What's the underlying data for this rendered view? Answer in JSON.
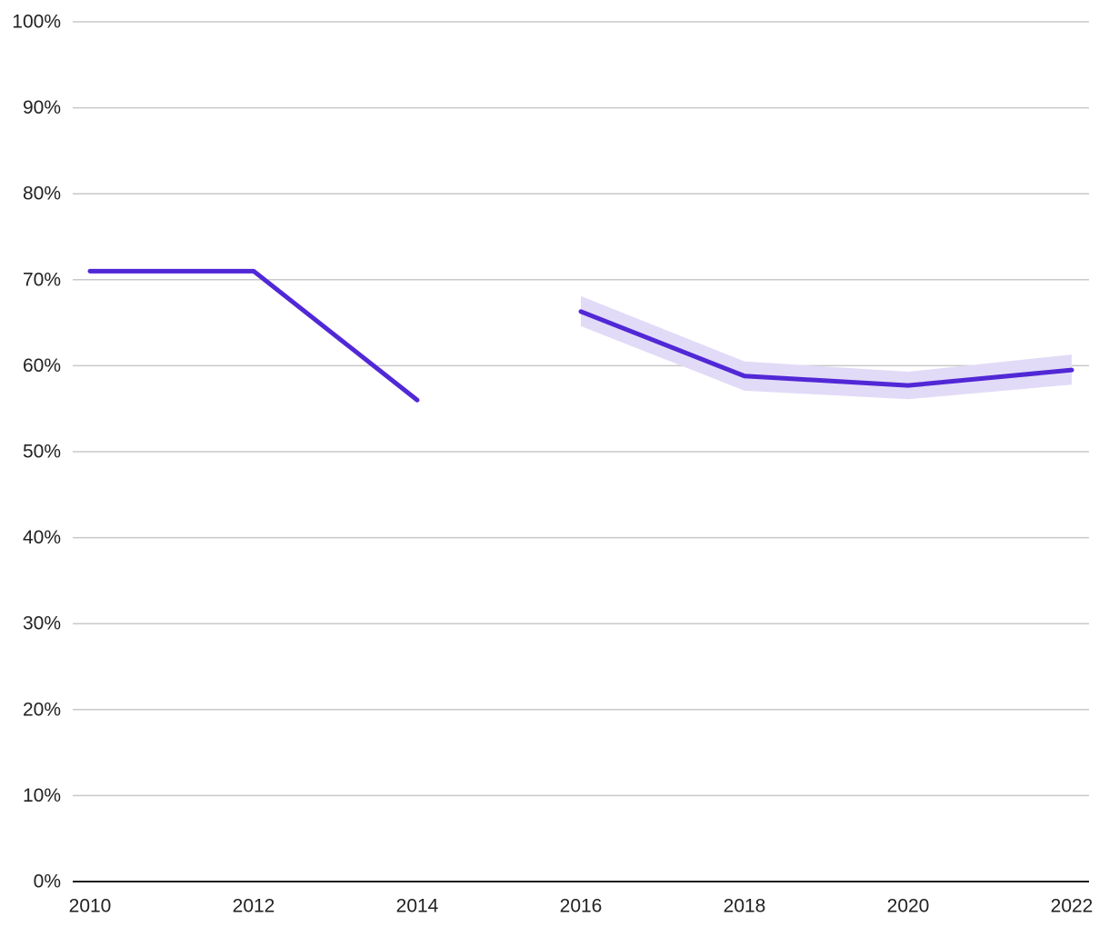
{
  "chart_data": {
    "type": "line",
    "title": "",
    "xlabel": "",
    "ylabel": "",
    "x": [
      2010,
      2012,
      2014,
      2016,
      2018,
      2020,
      2022
    ],
    "xlim": [
      2010,
      2022
    ],
    "ylim": [
      0,
      100
    ],
    "grid": true,
    "legend": "none",
    "y_tick_labels": [
      "0%",
      "10%",
      "20%",
      "30%",
      "40%",
      "50%",
      "60%",
      "70%",
      "80%",
      "90%",
      "100%"
    ],
    "x_tick_labels": [
      "2010",
      "2012",
      "2014",
      "2016",
      "2018",
      "2020",
      "2022"
    ],
    "series": [
      {
        "values": [
          71,
          71,
          56,
          66.3,
          58.8,
          57.7,
          59.5
        ],
        "lower": [
          null,
          null,
          null,
          64.6,
          57.1,
          56.1,
          57.8
        ],
        "upper": [
          null,
          null,
          null,
          68.1,
          60.5,
          59.3,
          61.3
        ],
        "segments": [
          [
            2010,
            2014
          ],
          [
            2016,
            2022
          ]
        ]
      }
    ],
    "colors": {
      "line": "#5128d6",
      "band": "#e2dbf7",
      "grid": "#c8c8c8",
      "axis": "#1a1a1a"
    }
  }
}
